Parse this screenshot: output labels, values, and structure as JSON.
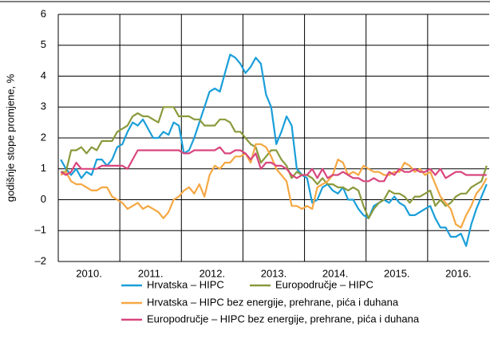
{
  "chart_data": {
    "type": "line",
    "y_label": "godišnje stope promjene, %",
    "categories": [
      "2010.",
      "2011.",
      "2012.",
      "2013.",
      "2014.",
      "2015.",
      "2016."
    ],
    "ylim": [
      -2,
      6
    ],
    "yticks": [
      {
        "value": -2,
        "label": "–2"
      },
      {
        "value": -1,
        "label": "–1"
      },
      0,
      1,
      2,
      3,
      4,
      5,
      6
    ],
    "grid": true,
    "series": [
      {
        "name": "Hrvatska – HIPC",
        "color": "#1a9fd9",
        "values": [
          [
            1.3,
            1.0,
            0.8,
            1.0,
            0.7,
            0.9,
            0.8,
            1.3,
            1.3,
            1.1,
            1.3,
            1.7
          ],
          [
            1.8,
            2.2,
            2.5,
            2.4,
            2.6,
            2.3,
            2.0,
            2.0,
            2.2,
            2.1,
            2.5,
            2.4
          ],
          [
            1.5,
            1.6,
            2.0,
            2.5,
            3.0,
            3.5,
            3.6,
            3.5,
            4.1,
            4.7,
            4.6,
            4.4
          ],
          [
            4.1,
            4.3,
            4.6,
            4.4,
            3.4,
            3.0,
            1.8,
            2.2,
            2.7,
            2.4,
            1.0,
            0.8
          ],
          [
            0.7,
            -0.1,
            0.0,
            0.4,
            0.5,
            0.3,
            0.2,
            0.4,
            0.0,
            0.0,
            -0.3,
            -0.5
          ],
          [
            -0.6,
            -0.2,
            -0.1,
            0.0,
            -0.1,
            0.1,
            -0.1,
            -0.2,
            -0.5,
            -0.5,
            -0.4,
            -0.3
          ],
          [
            -0.2,
            -0.6,
            -0.9,
            -0.9,
            -1.2,
            -1.2,
            -1.1,
            -1.5,
            -0.8,
            -0.3,
            0.1,
            0.5
          ]
        ]
      },
      {
        "name": "Europodručje – HIPC",
        "color": "#8a9a3c",
        "values": [
          [
            0.9,
            0.9,
            1.6,
            1.6,
            1.7,
            1.5,
            1.7,
            1.6,
            1.9,
            1.9,
            1.9,
            2.2
          ],
          [
            2.3,
            2.4,
            2.7,
            2.8,
            2.7,
            2.7,
            2.6,
            2.5,
            3.0,
            3.0,
            3.0,
            2.7
          ],
          [
            2.7,
            2.7,
            2.6,
            2.6,
            2.4,
            2.4,
            2.4,
            2.6,
            2.6,
            2.5,
            2.2,
            2.2
          ],
          [
            2.0,
            1.8,
            1.7,
            1.2,
            1.4,
            1.6,
            1.6,
            1.3,
            1.1,
            0.7,
            0.9,
            0.8
          ],
          [
            0.8,
            0.7,
            0.5,
            0.7,
            0.5,
            0.5,
            0.4,
            0.4,
            0.3,
            0.4,
            0.3,
            -0.2
          ],
          [
            -0.6,
            -0.3,
            -0.1,
            0.0,
            0.3,
            0.2,
            0.2,
            0.1,
            -0.1,
            0.1,
            0.1,
            0.2
          ],
          [
            0.3,
            -0.2,
            0.0,
            -0.2,
            -0.1,
            0.1,
            0.2,
            0.2,
            0.4,
            0.5,
            0.6,
            1.1
          ]
        ]
      },
      {
        "name": "Hrvatska – HIPC bez energije, prehrane, pića i duhana",
        "color": "#f5a843",
        "values": [
          [
            0.8,
            0.9,
            0.6,
            0.5,
            0.5,
            0.4,
            0.3,
            0.3,
            0.4,
            0.4,
            0.1,
            0.0
          ],
          [
            -0.1,
            -0.3,
            -0.2,
            -0.1,
            -0.3,
            -0.2,
            -0.3,
            -0.4,
            -0.6,
            -0.4,
            0.0,
            0.1
          ],
          [
            0.3,
            0.4,
            0.2,
            0.5,
            0.1,
            0.8,
            1.1,
            1.0,
            1.2,
            1.2,
            1.4,
            1.4
          ],
          [
            1.5,
            1.2,
            1.8,
            1.8,
            1.7,
            1.4,
            1.0,
            0.8,
            0.6,
            -0.2,
            -0.2,
            -0.3
          ],
          [
            -0.2,
            -0.3,
            0.4,
            0.5,
            0.6,
            0.8,
            1.3,
            1.2,
            0.8,
            0.9,
            0.8,
            1.1
          ],
          [
            1.0,
            0.9,
            0.9,
            0.8,
            0.8,
            0.9,
            0.9,
            1.2,
            1.1,
            0.9,
            1.0,
            0.8
          ],
          [
            0.9,
            0.5,
            0.1,
            -0.1,
            -0.3,
            -0.8,
            -0.9,
            -0.5,
            -0.2,
            0.2,
            0.4,
            0.7
          ]
        ]
      },
      {
        "name": "Europodručje – HIPC bez energije, prehrane, pića i duhana",
        "color": "#d9467e",
        "values": [
          [
            0.9,
            0.8,
            0.9,
            1.2,
            1.0,
            1.0,
            1.0,
            1.0,
            1.1,
            1.1,
            1.1,
            1.1
          ],
          [
            1.1,
            1.0,
            1.3,
            1.6,
            1.6,
            1.6,
            1.6,
            1.6,
            1.6,
            1.6,
            1.6,
            1.6
          ],
          [
            1.5,
            1.5,
            1.6,
            1.6,
            1.6,
            1.6,
            1.6,
            1.7,
            1.5,
            1.5,
            1.6,
            1.6
          ],
          [
            1.5,
            1.3,
            1.5,
            1.0,
            1.2,
            1.2,
            1.1,
            1.1,
            1.0,
            0.8,
            0.7,
            0.8
          ],
          [
            0.8,
            1.0,
            0.7,
            1.0,
            0.7,
            0.8,
            0.8,
            0.9,
            0.8,
            0.7,
            0.7,
            0.6
          ],
          [
            0.6,
            0.7,
            0.6,
            0.6,
            0.9,
            0.8,
            1.0,
            0.9,
            0.9,
            1.0,
            0.9,
            0.9
          ],
          [
            1.0,
            0.8,
            1.0,
            0.7,
            0.8,
            0.9,
            0.9,
            0.8,
            0.8,
            0.8,
            0.8,
            0.8
          ]
        ]
      }
    ]
  }
}
